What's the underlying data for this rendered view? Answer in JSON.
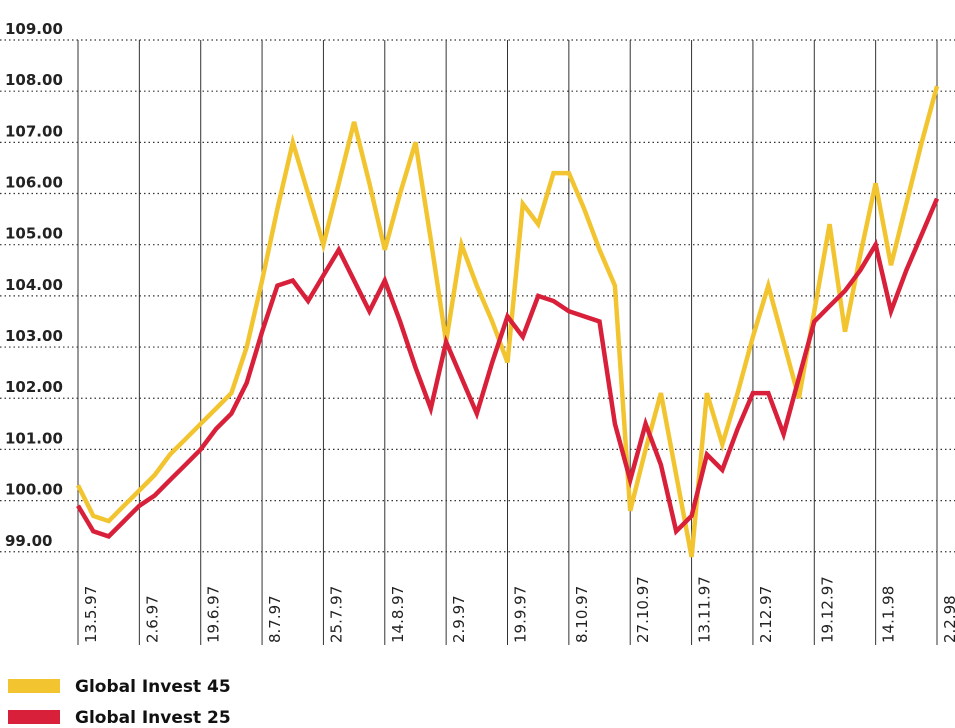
{
  "chart_data": {
    "type": "line",
    "categories": [
      "13.5.97",
      null,
      null,
      null,
      "2.6.97",
      null,
      null,
      null,
      "19.6.97",
      null,
      null,
      null,
      "8.7.97",
      null,
      null,
      null,
      "25.7.97",
      null,
      null,
      null,
      "14.8.97",
      null,
      null,
      null,
      "2.9.97",
      null,
      null,
      null,
      "19.9.97",
      null,
      null,
      null,
      "8.10.97",
      null,
      null,
      null,
      "27.10.97",
      null,
      null,
      null,
      "13.11.97",
      null,
      null,
      null,
      "2.12.97",
      null,
      null,
      null,
      "19.12.97",
      null,
      null,
      null,
      "14.1.98",
      null,
      null,
      null,
      "2.2.98"
    ],
    "series": [
      {
        "name": "Global Invest 45",
        "color": "#f2c530",
        "values": [
          100.3,
          99.7,
          99.6,
          99.9,
          100.2,
          100.5,
          100.9,
          101.2,
          101.5,
          101.8,
          102.1,
          103.0,
          104.3,
          105.7,
          107.0,
          106.0,
          105.0,
          106.2,
          107.4,
          106.2,
          104.9,
          106.0,
          107.0,
          105.1,
          103.1,
          105.0,
          104.2,
          103.5,
          102.7,
          105.8,
          105.4,
          106.4,
          106.4,
          105.7,
          104.9,
          104.2,
          99.8,
          101.0,
          102.1,
          100.5,
          98.9,
          102.1,
          101.1,
          102.1,
          103.2,
          104.2,
          103.1,
          102.0,
          103.7,
          105.4,
          103.3,
          104.8,
          106.2,
          104.6,
          105.8,
          107.0,
          108.1
        ]
      },
      {
        "name": "Global Invest 25",
        "color": "#d8203a",
        "values": [
          99.9,
          99.4,
          99.3,
          99.6,
          99.9,
          100.1,
          100.4,
          100.7,
          101.0,
          101.4,
          101.7,
          102.3,
          103.3,
          104.2,
          104.3,
          103.9,
          104.4,
          104.9,
          104.3,
          103.7,
          104.3,
          103.5,
          102.6,
          101.8,
          103.1,
          102.4,
          101.7,
          102.7,
          103.6,
          103.2,
          104.0,
          103.9,
          103.7,
          103.6,
          103.5,
          101.5,
          100.4,
          101.5,
          100.7,
          99.4,
          99.7,
          100.9,
          100.6,
          101.4,
          102.1,
          102.1,
          101.3,
          102.4,
          103.5,
          103.8,
          104.1,
          104.5,
          105.0,
          103.7,
          104.5,
          105.2,
          105.9
        ]
      }
    ],
    "ylim": [
      98.8,
      109
    ],
    "yticks": [
      {
        "value": 99,
        "label": "99.00"
      },
      {
        "value": 100,
        "label": "100.00"
      },
      {
        "value": 101,
        "label": "101.00"
      },
      {
        "value": 102,
        "label": "102.00"
      },
      {
        "value": 103,
        "label": "103.00"
      },
      {
        "value": 104,
        "label": "104.00"
      },
      {
        "value": 105,
        "label": "105.00"
      },
      {
        "value": 106,
        "label": "106.00"
      },
      {
        "value": 107,
        "label": "107.00"
      },
      {
        "value": 108,
        "label": "108.00"
      },
      {
        "value": 109,
        "label": "109.00"
      }
    ],
    "grid": true
  }
}
